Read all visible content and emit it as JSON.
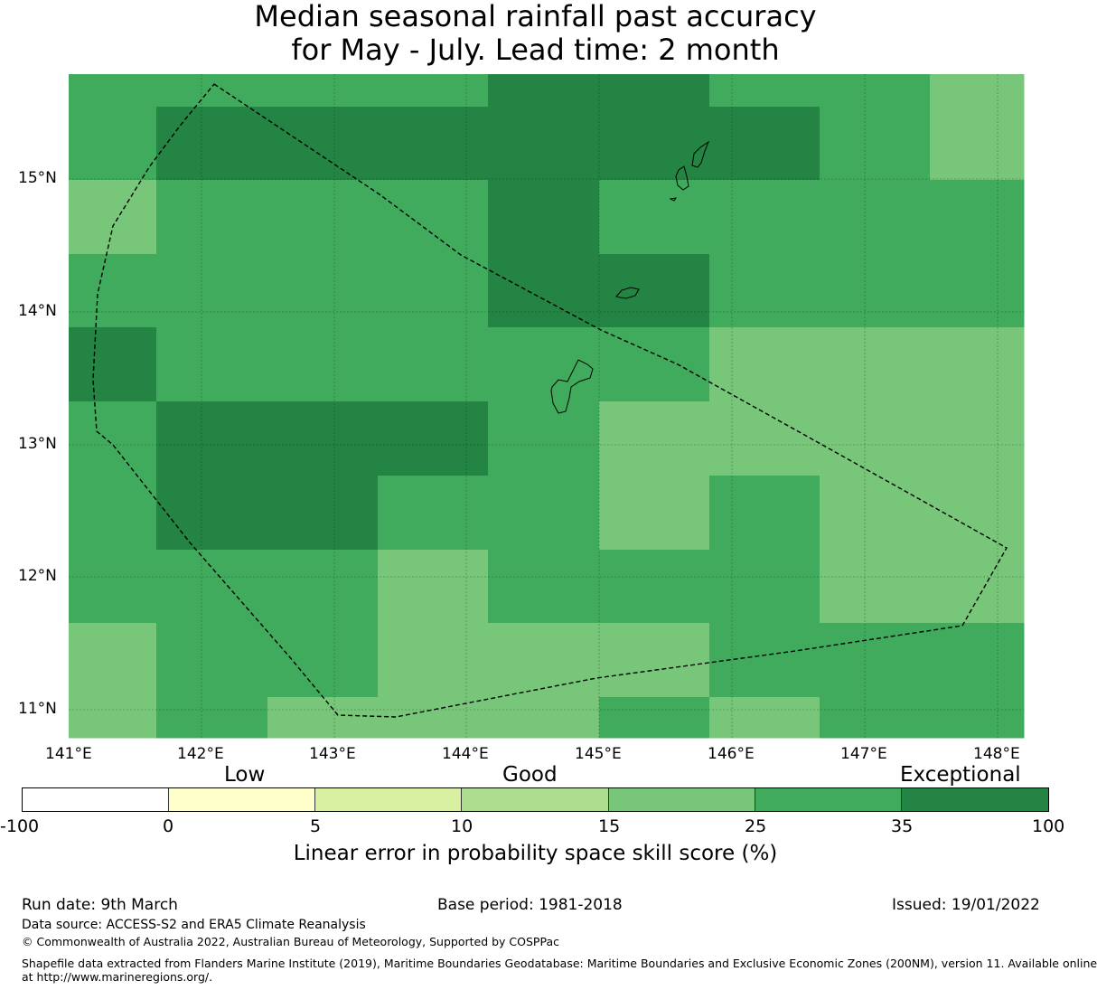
{
  "title": {
    "line1": "Median seasonal rainfall past accuracy",
    "line2": "for May - July. Lead time: 2 month"
  },
  "map": {
    "lon_labels": [
      "141°E",
      "142°E",
      "143°E",
      "144°E",
      "145°E",
      "146°E",
      "147°E",
      "148°E"
    ],
    "lat_labels": [
      "15°N",
      "14°N",
      "13°N",
      "12°N",
      "11°N"
    ],
    "extent": {
      "lon_min": 141.0,
      "lon_max": 148.2,
      "lat_min": 10.8,
      "lat_max": 15.8
    },
    "cell_colors": {
      "mid": "#78c679",
      "high": "#41ab5d",
      "exceptional": "#238443"
    }
  },
  "legend": {
    "categories": [
      "Low",
      "Good",
      "Exceptional"
    ],
    "bins": [
      "-100",
      "0",
      "5",
      "10",
      "15",
      "25",
      "35",
      "100"
    ],
    "colors": [
      "#ffffff",
      "#ffffcc",
      "#d9f0a3",
      "#addd8e",
      "#78c679",
      "#41ab5d",
      "#238443"
    ],
    "label": "Linear error in probability space skill score (%)"
  },
  "footer": {
    "run_date": "Run date: 9th March",
    "base_period": "Base period: 1981-2018",
    "issued": "Issued: 19/01/2022",
    "data_source": "Data source: ACCESS-S2 and ERA5 Climate Reanalysis",
    "copyright": "© Commonwealth of Australia 2022, Australian Bureau of Meteorology, Supported by COSPPac",
    "shapefile_line1": "Shapefile data extracted from Flanders Marine Institute (2019), Maritime Boundaries Geodatabase: Maritime Boundaries and Exclusive Economic Zones (200NM), version 11. Available online",
    "shapefile_line2": "at http://www.marineregions.org/."
  }
}
